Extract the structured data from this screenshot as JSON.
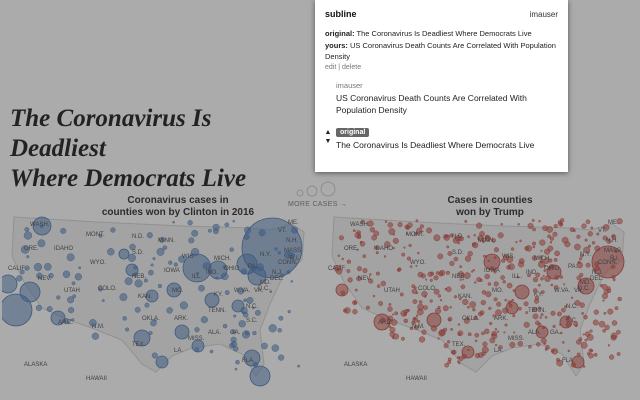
{
  "article": {
    "headline_line1": "The Coronavirus Is Deadliest",
    "headline_line2": "Where Democrats Live",
    "more_cases": "MORE CASES →"
  },
  "maps": {
    "clinton": {
      "title_line1": "Coronavirus cases in",
      "title_line2": "counties won by Clinton in 2016",
      "bubble_color": "#3d6fb0"
    },
    "trump": {
      "title_line1": "Cases in counties",
      "title_line2": "won by Trump",
      "bubble_color": "#c23b30"
    },
    "state_labels": [
      "WASH.",
      "MONT.",
      "N.D.",
      "MINN.",
      "ORE.",
      "IDAHO",
      "S.D.",
      "WIS.",
      "WYO.",
      "MICH.",
      "N.Y.",
      "VT.",
      "N.H.",
      "MASS.",
      "NEB.",
      "IOWA",
      "IND.",
      "OHIO",
      "PA.",
      "CALIF.",
      "NEV.",
      "UTAH",
      "COLO.",
      "KAN.",
      "MO.",
      "ILL.",
      "W.VA.",
      "VA.",
      "KY.",
      "ARIZ.",
      "N.M.",
      "OKLA.",
      "ARK.",
      "TENN.",
      "N.C.",
      "S.C.",
      "ALA.",
      "GA.",
      "MISS.",
      "LA.",
      "TEX.",
      "FLA.",
      "ALASKA",
      "HAWAII",
      "ME.",
      "CONN.",
      "N.J.",
      "DEL.",
      "MD.",
      "D.C.",
      "R.I."
    ]
  },
  "popup": {
    "brand": "subline",
    "username": "imauser",
    "original_label": "original:",
    "original_value": "The Coronavirus Is Deadliest Where Democrats Live",
    "yours_label": "yours:",
    "yours_value": "US Coronavirus Death Counts Are Correlated With Population Density",
    "edit": "edit",
    "separator": "|",
    "delete": "delete",
    "sub_user": "imauser",
    "sub_title": "US Coronavirus Death Counts Are Correlated With Population Density",
    "badge": "original",
    "original_entry": "The Coronavirus Is Deadliest Where Democrats Live"
  }
}
